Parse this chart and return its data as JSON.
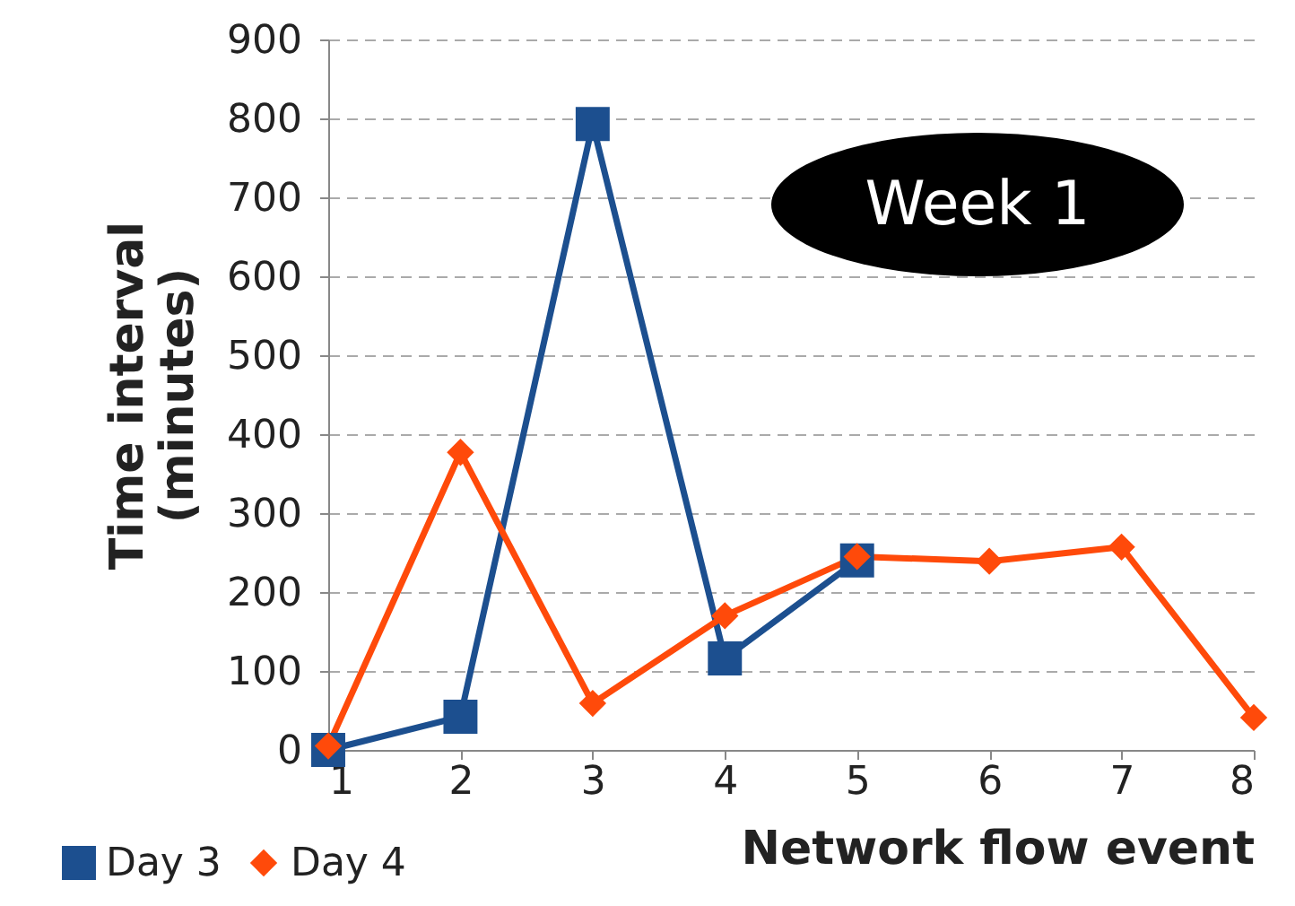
{
  "chart_data": {
    "type": "line",
    "xlabel": "Network flow event",
    "ylabel": "Time interval\n(minutes)",
    "annotations": [
      "Week 1"
    ],
    "x": [
      1,
      2,
      3,
      4,
      5,
      6,
      7,
      8
    ],
    "xlim": [
      1,
      8
    ],
    "xticks": [
      1,
      2,
      3,
      4,
      5,
      6,
      7,
      8
    ],
    "ylim": [
      0,
      900
    ],
    "yticks": [
      0,
      100,
      200,
      300,
      400,
      500,
      600,
      700,
      800,
      900
    ],
    "grid": "y",
    "legend": "bottom left",
    "line_style": "solid",
    "series": [
      {
        "name": "Day 3",
        "color": "#1c4f8f",
        "marker": "square",
        "values": [
          0,
          42,
          793,
          116,
          240,
          null,
          null,
          null
        ]
      },
      {
        "name": "Day 4",
        "color": "#ff4a0a",
        "marker": "diamond",
        "values": [
          5,
          377,
          59,
          170,
          245,
          239,
          257,
          41
        ]
      }
    ]
  }
}
